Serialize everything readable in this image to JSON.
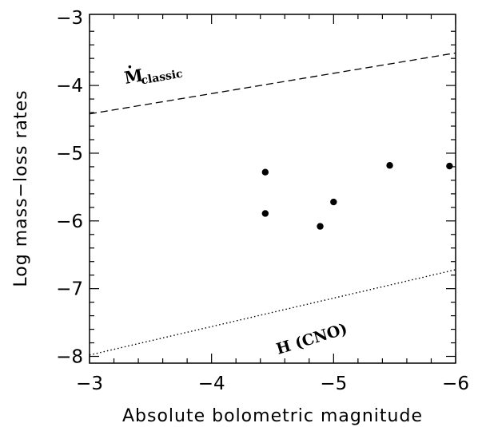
{
  "chart_data": {
    "type": "scatter",
    "title": "",
    "xlabel": "Absolute bolometric magnitude",
    "ylabel": "Log mass−loss rates",
    "xlim": [
      -3,
      -6
    ],
    "ylim": [
      -8.1,
      -2.95
    ],
    "x_ticks": [
      -3,
      -4,
      -5,
      -6
    ],
    "x_tick_labels": [
      "−3",
      "−4",
      "−5",
      "−6"
    ],
    "y_ticks": [
      -8,
      -7,
      -6,
      -5,
      -4,
      -3
    ],
    "y_tick_labels": [
      "−8",
      "−7",
      "−6",
      "−5",
      "−4",
      "−3"
    ],
    "grid": false,
    "points": [
      {
        "x": -4.44,
        "y": -5.28
      },
      {
        "x": -4.44,
        "y": -5.89
      },
      {
        "x": -4.89,
        "y": -6.08
      },
      {
        "x": -5.0,
        "y": -5.72
      },
      {
        "x": -5.46,
        "y": -5.18
      },
      {
        "x": -5.95,
        "y": -5.19
      }
    ],
    "lines": [
      {
        "style": "dashed",
        "x": [
          -3,
          -6
        ],
        "y": [
          -4.42,
          -3.52
        ]
      },
      {
        "style": "dotted",
        "x": [
          -3,
          -6
        ],
        "y": [
          -7.98,
          -6.72
        ]
      }
    ],
    "annotations": {
      "classic_main": "M",
      "classic_sub": "classic",
      "cno": "H (CNO)"
    }
  }
}
